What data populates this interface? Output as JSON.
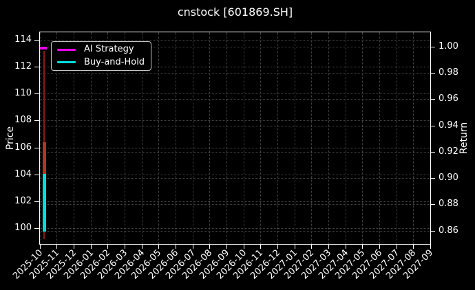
{
  "chart_data": {
    "type": "line",
    "title": "cnstock [601869.SH]",
    "background": "#000000",
    "text_color": "#ffffff",
    "grid": {
      "visible": true,
      "style": "dotted",
      "color": "#484848"
    },
    "x_axis": {
      "label_rotation_deg": 45,
      "tick_labels": [
        "2025-10",
        "2025-11",
        "2025-12",
        "2026-01",
        "2026-02",
        "2026-03",
        "2026-04",
        "2026-05",
        "2026-06",
        "2026-07",
        "2026-08",
        "2026-09",
        "2026-10",
        "2026-11",
        "2026-12",
        "2027-01",
        "2027-02",
        "2027-03",
        "2027-04",
        "2027-05",
        "2027-06",
        "2027-07",
        "2027-08",
        "2027-09"
      ]
    },
    "y_left": {
      "label": "Price",
      "ticks": [
        {
          "label": "114",
          "v": 114
        },
        {
          "label": "112",
          "v": 112
        },
        {
          "label": "110",
          "v": 110
        },
        {
          "label": "108",
          "v": 108
        },
        {
          "label": "106",
          "v": 106
        },
        {
          "label": "104",
          "v": 104
        },
        {
          "label": "102",
          "v": 102
        },
        {
          "label": "100",
          "v": 100
        }
      ]
    },
    "y_right": {
      "label": "Return",
      "ticks": [
        {
          "label": "1.00",
          "v": 1.0
        },
        {
          "label": "0.98",
          "v": 0.98
        },
        {
          "label": "0.96",
          "v": 0.96
        },
        {
          "label": "0.94",
          "v": 0.94
        },
        {
          "label": "0.92",
          "v": 0.92
        },
        {
          "label": "0.90",
          "v": 0.9
        },
        {
          "label": "0.88",
          "v": 0.88
        },
        {
          "label": "0.86",
          "v": 0.86
        }
      ]
    },
    "legend": {
      "position": "upper-left",
      "entries": [
        {
          "label": "AI Strategy",
          "color": "#f000f0"
        },
        {
          "label": "Buy-and-Hold",
          "color": "#00dede"
        }
      ]
    },
    "series": [
      {
        "name": "AI Strategy",
        "axis": "right",
        "color": "#f000f0",
        "thickness": 3.5,
        "x_frac": [
          0.0,
          0.0185
        ],
        "values": [
          0.999,
          0.999
        ]
      },
      {
        "name": "Price",
        "axis": "left",
        "color": "#8f1b11",
        "thickness": 2,
        "x_frac": [
          0.0115,
          0.0115
        ],
        "values": [
          113.2,
          99.2
        ],
        "body": {
          "color": "#b23522",
          "thickness": 5,
          "values": [
            106.4,
            104.0
          ]
        }
      },
      {
        "name": "Buy-and-Hold",
        "axis": "right",
        "color": "#00dede",
        "thickness": 5,
        "x_frac": [
          0.0115,
          0.0115
        ],
        "values": [
          0.903,
          0.859
        ]
      }
    ]
  }
}
